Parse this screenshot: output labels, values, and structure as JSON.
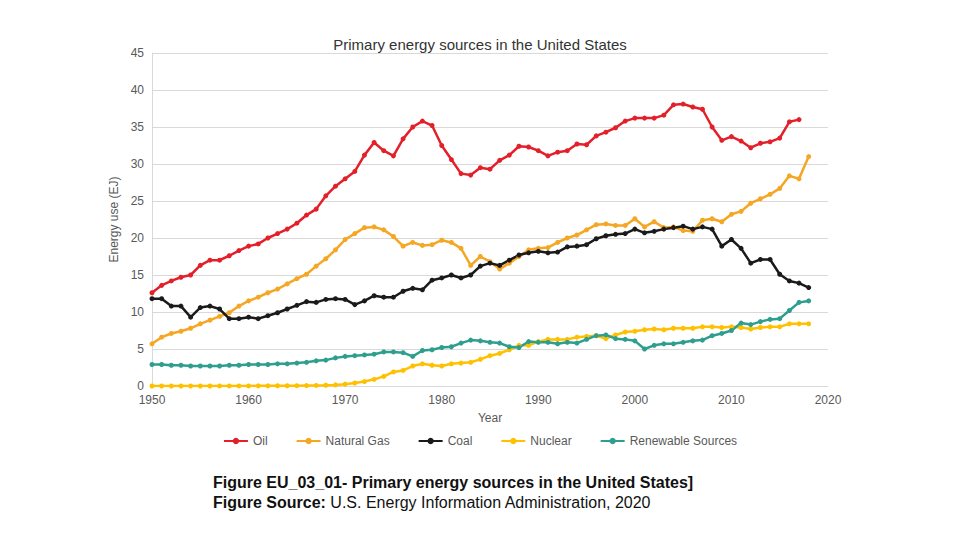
{
  "chart_data": {
    "type": "line",
    "title": "Primary energy sources in the United States",
    "x_label": "Year",
    "y_label": "Energy use (EJ)",
    "x": [
      1950,
      1951,
      1952,
      1953,
      1954,
      1955,
      1956,
      1957,
      1958,
      1959,
      1960,
      1961,
      1962,
      1963,
      1964,
      1965,
      1966,
      1967,
      1968,
      1969,
      1970,
      1971,
      1972,
      1973,
      1974,
      1975,
      1976,
      1977,
      1978,
      1979,
      1980,
      1981,
      1982,
      1983,
      1984,
      1985,
      1986,
      1987,
      1988,
      1989,
      1990,
      1991,
      1992,
      1993,
      1994,
      1995,
      1996,
      1997,
      1998,
      1999,
      2000,
      2001,
      2002,
      2003,
      2004,
      2005,
      2006,
      2007,
      2008,
      2009,
      2010,
      2011,
      2012,
      2013,
      2014,
      2015,
      2016,
      2017,
      2018
    ],
    "series": [
      {
        "name": "Oil",
        "color": "#e3202a",
        "values": [
          12.6,
          13.6,
          14.2,
          14.7,
          15.0,
          16.3,
          17.0,
          17.0,
          17.6,
          18.3,
          18.9,
          19.2,
          20.0,
          20.6,
          21.2,
          22.0,
          23.1,
          23.9,
          25.7,
          27.0,
          28.0,
          29.0,
          31.2,
          32.9,
          31.8,
          31.1,
          33.4,
          35.0,
          35.8,
          35.2,
          32.5,
          30.6,
          28.7,
          28.5,
          29.5,
          29.3,
          30.5,
          31.2,
          32.4,
          32.3,
          31.8,
          31.1,
          31.6,
          31.8,
          32.7,
          32.6,
          33.8,
          34.3,
          34.9,
          35.8,
          36.2,
          36.2,
          36.2,
          36.6,
          38.0,
          38.1,
          37.7,
          37.4,
          35.0,
          33.2,
          33.7,
          33.1,
          32.2,
          32.8,
          33.0,
          33.5,
          35.7,
          36.0,
          null
        ]
      },
      {
        "name": "Natural Gas",
        "color": "#f5a623",
        "values": [
          5.7,
          6.6,
          7.1,
          7.4,
          7.8,
          8.4,
          8.9,
          9.4,
          9.9,
          10.8,
          11.5,
          12.0,
          12.6,
          13.1,
          13.8,
          14.5,
          15.1,
          16.2,
          17.2,
          18.4,
          19.8,
          20.6,
          21.4,
          21.5,
          21.1,
          20.2,
          18.9,
          19.4,
          19.0,
          19.1,
          19.7,
          19.4,
          18.6,
          16.3,
          17.5,
          16.8,
          15.8,
          16.6,
          17.5,
          18.4,
          18.6,
          18.7,
          19.4,
          20.0,
          20.4,
          21.1,
          21.8,
          21.9,
          21.7,
          21.7,
          22.6,
          21.5,
          22.2,
          21.4,
          21.5,
          21.0,
          20.9,
          22.4,
          22.6,
          22.2,
          23.2,
          23.6,
          24.7,
          25.3,
          25.9,
          26.7,
          28.4,
          28.0,
          31.0
        ]
      },
      {
        "name": "Coal",
        "color": "#1a1a1a",
        "values": [
          11.8,
          11.8,
          10.8,
          10.8,
          9.3,
          10.6,
          10.8,
          10.4,
          9.1,
          9.1,
          9.3,
          9.1,
          9.5,
          9.9,
          10.4,
          10.9,
          11.4,
          11.3,
          11.7,
          11.8,
          11.7,
          11.0,
          11.5,
          12.2,
          12.0,
          12.0,
          12.8,
          13.2,
          13.0,
          14.3,
          14.6,
          15.0,
          14.6,
          15.0,
          16.2,
          16.6,
          16.3,
          17.0,
          17.7,
          18.0,
          18.2,
          18.0,
          18.1,
          18.8,
          18.9,
          19.1,
          19.9,
          20.3,
          20.5,
          20.6,
          21.2,
          20.7,
          20.9,
          21.2,
          21.4,
          21.6,
          21.2,
          21.5,
          21.2,
          18.9,
          19.8,
          18.6,
          16.6,
          17.1,
          17.1,
          15.1,
          14.2,
          13.9,
          13.3
        ]
      },
      {
        "name": "Nuclear",
        "color": "#ffc000",
        "values": [
          0,
          0,
          0,
          0,
          0,
          0,
          0,
          0.01,
          0.01,
          0.01,
          0.01,
          0.02,
          0.02,
          0.03,
          0.03,
          0.04,
          0.06,
          0.08,
          0.1,
          0.15,
          0.25,
          0.4,
          0.6,
          0.9,
          1.3,
          1.9,
          2.1,
          2.7,
          3.0,
          2.8,
          2.7,
          3.0,
          3.1,
          3.2,
          3.6,
          4.1,
          4.4,
          4.9,
          5.5,
          5.5,
          6.0,
          6.3,
          6.3,
          6.3,
          6.6,
          6.7,
          6.8,
          6.4,
          6.9,
          7.3,
          7.4,
          7.6,
          7.7,
          7.6,
          7.8,
          7.8,
          7.8,
          8.0,
          8.0,
          7.9,
          8.0,
          7.9,
          7.7,
          7.9,
          8.0,
          8.0,
          8.4,
          8.4,
          8.4
        ]
      },
      {
        "name": "Renewable Sources",
        "color": "#2e9e8f",
        "values": [
          2.9,
          2.9,
          2.8,
          2.8,
          2.7,
          2.7,
          2.7,
          2.7,
          2.8,
          2.8,
          2.9,
          2.9,
          2.9,
          3.0,
          3.0,
          3.1,
          3.2,
          3.4,
          3.5,
          3.8,
          4.0,
          4.1,
          4.2,
          4.3,
          4.6,
          4.6,
          4.5,
          4.0,
          4.8,
          4.9,
          5.2,
          5.3,
          5.8,
          6.2,
          6.1,
          5.9,
          5.8,
          5.3,
          5.2,
          6.0,
          5.9,
          5.9,
          5.7,
          5.9,
          5.8,
          6.3,
          6.8,
          6.9,
          6.4,
          6.3,
          6.1,
          5.0,
          5.5,
          5.7,
          5.7,
          5.9,
          6.1,
          6.2,
          6.8,
          7.1,
          7.5,
          8.5,
          8.3,
          8.7,
          9.0,
          9.1,
          10.2,
          11.3,
          11.5
        ]
      }
    ],
    "xlim": [
      1950,
      2020
    ],
    "xticks": [
      1950,
      1960,
      1970,
      1980,
      1990,
      2000,
      2010,
      2020
    ],
    "ylim": [
      0,
      45
    ],
    "yticks": [
      0,
      5,
      10,
      15,
      20,
      25,
      30,
      35,
      40,
      45
    ],
    "grid": true,
    "legend": "bottom",
    "marker": "circle",
    "annotations": [
      {
        "bold": "Figure EU_03_01- Primary energy sources in the United States]"
      },
      {
        "bold": "Figure Source:",
        "text": "U.S. Energy Information Administration, 2020"
      }
    ]
  }
}
